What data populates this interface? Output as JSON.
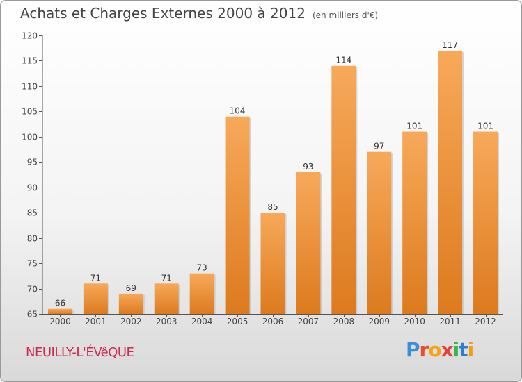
{
  "header": {
    "title": "Achats et Charges Externes 2000 à 2012",
    "subtitle": "(en milliers d'€)"
  },
  "footer": {
    "place": "NEUILLY-L'ÉVêQUE",
    "logo_letters": [
      "P",
      "r",
      "o",
      "x",
      "i",
      "t",
      "i"
    ],
    "logo_colors": [
      "#3a8fd6",
      "#e94f2e",
      "#f2a516",
      "#e8403a",
      "#39b54a",
      "#2a7fd4",
      "#f39c12"
    ]
  },
  "chart_data": {
    "type": "bar",
    "categories": [
      "2000",
      "2001",
      "2002",
      "2003",
      "2004",
      "2005",
      "2006",
      "2007",
      "2008",
      "2009",
      "2010",
      "2011",
      "2012"
    ],
    "values": [
      66,
      71,
      69,
      71,
      73,
      104,
      85,
      93,
      114,
      97,
      101,
      117,
      101
    ],
    "title": "Achats et Charges Externes 2000 à 2012",
    "xlabel": "",
    "ylabel": "",
    "ylim": [
      65,
      120
    ],
    "yticks": [
      65,
      70,
      75,
      80,
      85,
      90,
      95,
      100,
      105,
      110,
      115,
      120
    ],
    "grid": false,
    "bar_color": "#f0923a"
  }
}
